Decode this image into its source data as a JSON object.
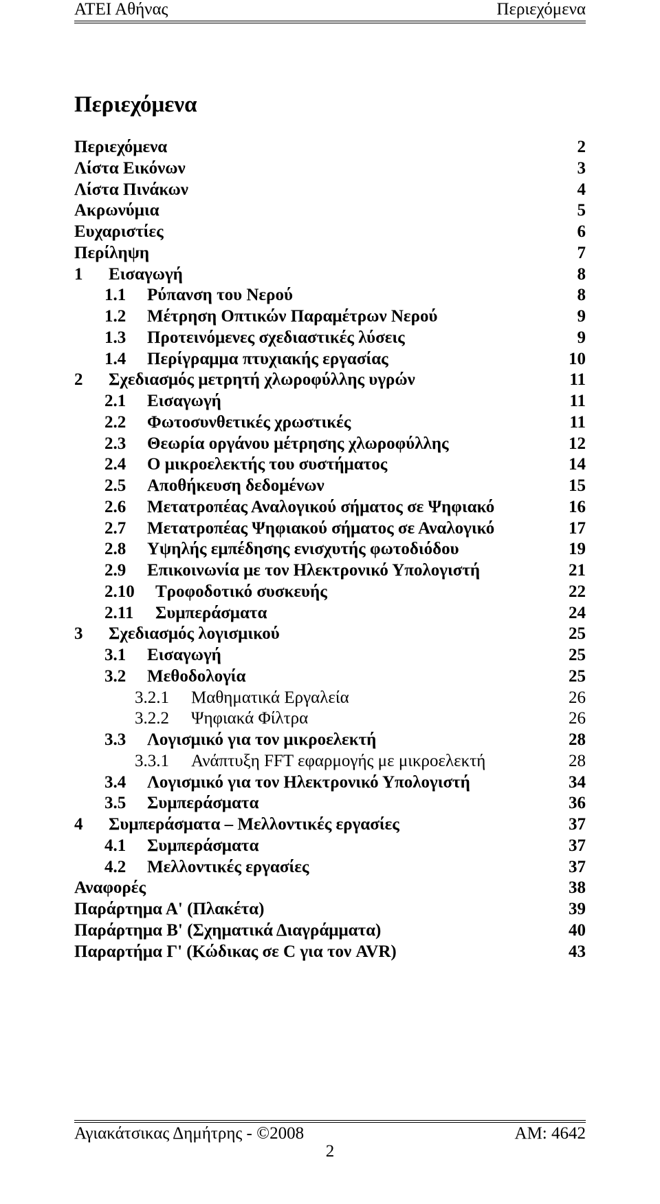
{
  "header": {
    "left": "ΑΤΕΙ Αθήνας",
    "right": "Περιεχόμενα"
  },
  "title": "Περιεχόμενα",
  "toc": [
    {
      "num": "",
      "text": "Περιεχόμενα",
      "page": "2",
      "bold": true,
      "indent": 0,
      "numclass": ""
    },
    {
      "num": "",
      "text": "Λίστα Εικόνων",
      "page": "3",
      "bold": true,
      "indent": 0,
      "numclass": ""
    },
    {
      "num": "",
      "text": "Λίστα Πινάκων",
      "page": "4",
      "bold": true,
      "indent": 0,
      "numclass": ""
    },
    {
      "num": "",
      "text": "Ακρωνύμια",
      "page": "5",
      "bold": true,
      "indent": 0,
      "numclass": ""
    },
    {
      "num": "",
      "text": "Ευχαριστίες",
      "page": "6",
      "bold": true,
      "indent": 0,
      "numclass": ""
    },
    {
      "num": "",
      "text": "Περίληψη",
      "page": "7",
      "bold": true,
      "indent": 0,
      "numclass": ""
    },
    {
      "num": "1",
      "text": "Εισαγωγή",
      "page": "8",
      "bold": true,
      "indent": 0,
      "numclass": "num-w1"
    },
    {
      "num": "1.1",
      "text": "Ρύπανση του Νερού",
      "page": "8",
      "bold": true,
      "indent": 1,
      "numclass": "num-w2"
    },
    {
      "num": "1.2",
      "text": "Μέτρηση Οπτικών Παραμέτρων Νερού",
      "page": "9",
      "bold": true,
      "indent": 1,
      "numclass": "num-w2"
    },
    {
      "num": "1.3",
      "text": "Προτεινόμενες σχεδιαστικές λύσεις",
      "page": "9",
      "bold": true,
      "indent": 1,
      "numclass": "num-w2"
    },
    {
      "num": "1.4",
      "text": "Περίγραμμα πτυχιακής εργασίας",
      "page": "10",
      "bold": true,
      "indent": 1,
      "numclass": "num-w2"
    },
    {
      "num": "2",
      "text": "Σχεδιασμός μετρητή χλωροφύλλης υγρών",
      "page": "11",
      "bold": true,
      "indent": 0,
      "numclass": "num-w1"
    },
    {
      "num": "2.1",
      "text": "Εισαγωγή",
      "page": "11",
      "bold": true,
      "indent": 1,
      "numclass": "num-w2"
    },
    {
      "num": "2.2",
      "text": "Φωτοσυνθετικές χρωστικές",
      "page": "11",
      "bold": true,
      "indent": 1,
      "numclass": "num-w2"
    },
    {
      "num": "2.3",
      "text": "Θεωρία οργάνου μέτρησης χλωροφύλλης",
      "page": "12",
      "bold": true,
      "indent": 1,
      "numclass": "num-w2"
    },
    {
      "num": "2.4",
      "text": "Ο μικροελεκτής του συστήματος",
      "page": "14",
      "bold": true,
      "indent": 1,
      "numclass": "num-w2"
    },
    {
      "num": "2.5",
      "text": "Αποθήκευση δεδομένων",
      "page": "15",
      "bold": true,
      "indent": 1,
      "numclass": "num-w2"
    },
    {
      "num": "2.6",
      "text": "Μετατροπέας Αναλογικού σήματος σε Ψηφιακό",
      "page": "16",
      "bold": true,
      "indent": 1,
      "numclass": "num-w2"
    },
    {
      "num": "2.7",
      "text": "Μετατροπέας Ψηφιακού σήματος σε Αναλογικό",
      "page": "17",
      "bold": true,
      "indent": 1,
      "numclass": "num-w2"
    },
    {
      "num": "2.8",
      "text": "Υψηλής εμπέδησης ενισχυτής φωτοδιόδου",
      "page": "19",
      "bold": true,
      "indent": 1,
      "numclass": "num-w2"
    },
    {
      "num": "2.9",
      "text": "Επικοινωνία με τον Ηλεκτρονικό Υπολογιστή",
      "page": "21",
      "bold": true,
      "indent": 1,
      "numclass": "num-w2"
    },
    {
      "num": "2.10",
      "text": "Τροφοδοτικό συσκευής",
      "page": "22",
      "bold": true,
      "indent": 1,
      "numclass": "num-w2b"
    },
    {
      "num": "2.11",
      "text": "Συμπεράσματα",
      "page": "24",
      "bold": true,
      "indent": 1,
      "numclass": "num-w2b"
    },
    {
      "num": "3",
      "text": "Σχεδιασμός λογισμικού",
      "page": "25",
      "bold": true,
      "indent": 0,
      "numclass": "num-w1"
    },
    {
      "num": "3.1",
      "text": "Εισαγωγή",
      "page": "25",
      "bold": true,
      "indent": 1,
      "numclass": "num-w2"
    },
    {
      "num": "3.2",
      "text": "Μεθοδολογία",
      "page": "25",
      "bold": true,
      "indent": 1,
      "numclass": "num-w2"
    },
    {
      "num": "3.2.1",
      "text": "Μαθηματικά Εργαλεία",
      "page": "26",
      "bold": false,
      "indent": 2,
      "numclass": "num-w3"
    },
    {
      "num": "3.2.2",
      "text": "Ψηφιακά Φίλτρα",
      "page": "26",
      "bold": false,
      "indent": 2,
      "numclass": "num-w3"
    },
    {
      "num": "3.3",
      "text": "Λογισμικό για τον μικροελεκτή",
      "page": "28",
      "bold": true,
      "indent": 1,
      "numclass": "num-w2"
    },
    {
      "num": "3.3.1",
      "text": "Ανάπτυξη FFT εφαρμογής με μικροελεκτή",
      "page": "28",
      "bold": false,
      "indent": 2,
      "numclass": "num-w3"
    },
    {
      "num": "3.4",
      "text": "Λογισμικό για τον Ηλεκτρονικό Υπολογιστή",
      "page": "34",
      "bold": true,
      "indent": 1,
      "numclass": "num-w2"
    },
    {
      "num": "3.5",
      "text": "Συμπεράσματα",
      "page": "36",
      "bold": true,
      "indent": 1,
      "numclass": "num-w2"
    },
    {
      "num": "4",
      "text": "Συμπεράσματα – Μελλοντικές εργασίες",
      "page": "37",
      "bold": true,
      "indent": 0,
      "numclass": "num-w1"
    },
    {
      "num": "4.1",
      "text": "Συμπεράσματα",
      "page": "37",
      "bold": true,
      "indent": 1,
      "numclass": "num-w2"
    },
    {
      "num": "4.2",
      "text": "Μελλοντικές εργασίες",
      "page": "37",
      "bold": true,
      "indent": 1,
      "numclass": "num-w2"
    },
    {
      "num": "",
      "text": "Αναφορές",
      "page": "38",
      "bold": true,
      "indent": 0,
      "numclass": ""
    },
    {
      "num": "",
      "text": "Παράρτημα Α' (Πλακέτα)",
      "page": "39",
      "bold": true,
      "indent": 0,
      "numclass": ""
    },
    {
      "num": "",
      "text": "Παράρτημα Β' (Σχηματικά Διαγράμματα)",
      "page": "40",
      "bold": true,
      "indent": 0,
      "numclass": ""
    },
    {
      "num": "",
      "text": "Παραρτήμα Γ' (Κώδικας σε C για τον AVR)",
      "page": "43",
      "bold": true,
      "indent": 0,
      "numclass": ""
    }
  ],
  "footer": {
    "left": "Αγιακάτσικας Δημήτρης - ©2008",
    "right": "ΑΜ: 4642",
    "pagenum": "2"
  }
}
